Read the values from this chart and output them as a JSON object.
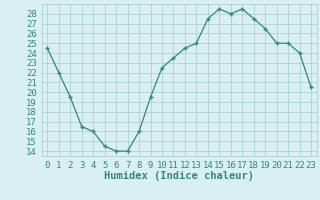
{
  "x": [
    0,
    1,
    2,
    3,
    4,
    5,
    6,
    7,
    8,
    9,
    10,
    11,
    12,
    13,
    14,
    15,
    16,
    17,
    18,
    19,
    20,
    21,
    22,
    23
  ],
  "y": [
    24.5,
    22.0,
    19.5,
    16.5,
    16.0,
    14.5,
    14.0,
    14.0,
    16.0,
    19.5,
    22.5,
    23.5,
    24.5,
    25.0,
    27.5,
    28.5,
    28.0,
    28.5,
    27.5,
    26.5,
    25.0,
    25.0,
    24.0,
    20.5
  ],
  "xlabel": "Humidex (Indice chaleur)",
  "xlim": [
    -0.5,
    23.5
  ],
  "ylim": [
    13.5,
    29.0
  ],
  "yticks": [
    14,
    15,
    16,
    17,
    18,
    19,
    20,
    21,
    22,
    23,
    24,
    25,
    26,
    27,
    28
  ],
  "xticks": [
    0,
    1,
    2,
    3,
    4,
    5,
    6,
    7,
    8,
    9,
    10,
    11,
    12,
    13,
    14,
    15,
    16,
    17,
    18,
    19,
    20,
    21,
    22,
    23
  ],
  "line_color": "#2e8b74",
  "marker": "+",
  "bg_color": "#d8f0f0",
  "grid_color": "#a8cccc",
  "tick_label_color": "#2e8b74",
  "axis_label_color": "#2e8b74",
  "fontsize_ticks": 6.5,
  "fontsize_xlabel": 7.5
}
